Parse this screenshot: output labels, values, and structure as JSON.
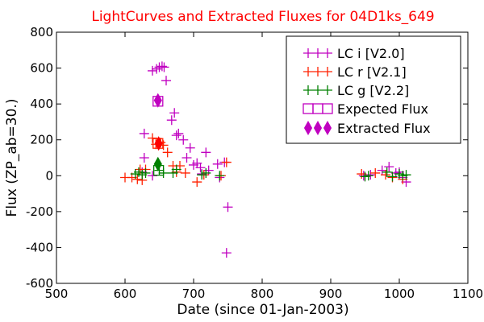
{
  "chart_data": {
    "type": "scatter",
    "title": "LightCurves and Extracted Fluxes for 04D1ks_649",
    "xlabel": "Date (since 01-Jan-2003)",
    "ylabel": "Flux (ZP_ab=30.)",
    "xlim": [
      500,
      1100
    ],
    "ylim": [
      -600,
      800
    ],
    "xticks": [
      500,
      600,
      700,
      800,
      900,
      1000,
      1100
    ],
    "yticks": [
      -600,
      -400,
      -200,
      0,
      200,
      400,
      600,
      800
    ],
    "grid": false,
    "legend_position": "top-right",
    "series": [
      {
        "name": "LC i [V2.0]",
        "marker": "plus",
        "color": "#c000c0",
        "x": [
          628,
          640,
          646,
          650,
          654,
          657,
          660,
          668,
          672,
          675,
          678,
          685,
          690,
          695,
          700,
          705,
          710,
          712,
          718,
          722,
          735,
          738,
          745,
          748,
          750,
          628,
          625,
          640,
          975,
          985,
          995,
          1000,
          1010,
          948,
          958,
          1005
        ],
        "y": [
          235,
          585,
          595,
          605,
          610,
          605,
          530,
          310,
          350,
          225,
          235,
          200,
          100,
          155,
          60,
          70,
          45,
          10,
          130,
          30,
          65,
          -10,
          75,
          -430,
          -175,
          100,
          20,
          0,
          30,
          50,
          15,
          20,
          -35,
          0,
          5,
          -10
        ]
      },
      {
        "name": "LC r [V2.1]",
        "marker": "plus",
        "color": "#ff2000",
        "x": [
          600,
          610,
          618,
          622,
          625,
          630,
          640,
          645,
          652,
          656,
          662,
          670,
          675,
          680,
          688,
          705,
          715,
          740,
          748,
          945,
          965,
          980,
          990,
          1005
        ],
        "y": [
          -10,
          -10,
          -20,
          35,
          -25,
          35,
          210,
          175,
          185,
          170,
          130,
          55,
          20,
          55,
          15,
          -35,
          5,
          0,
          75,
          10,
          15,
          5,
          -10,
          -20
        ]
      },
      {
        "name": "LC g [V2.2]",
        "marker": "plus",
        "color": "#008000",
        "x": [
          615,
          620,
          625,
          630,
          650,
          656,
          670,
          675,
          712,
          718,
          738,
          950,
          955,
          982,
          990,
          1000,
          1005,
          1010
        ],
        "y": [
          10,
          20,
          5,
          15,
          30,
          15,
          15,
          35,
          5,
          15,
          0,
          -5,
          0,
          20,
          -5,
          10,
          0,
          5
        ]
      },
      {
        "name": "Expected Flux",
        "marker": "open-square",
        "x": [
          648,
          648,
          649
        ],
        "y": [
          415,
          180,
          30
        ],
        "colors": [
          "#c000c0",
          "#ff2000",
          "#008000"
        ]
      },
      {
        "name": "Extracted Flux",
        "marker": "filled-diamond",
        "x": [
          648,
          649,
          648
        ],
        "y": [
          420,
          180,
          65
        ],
        "colors": [
          "#c000c0",
          "#ff0000",
          "#008000"
        ]
      }
    ]
  }
}
